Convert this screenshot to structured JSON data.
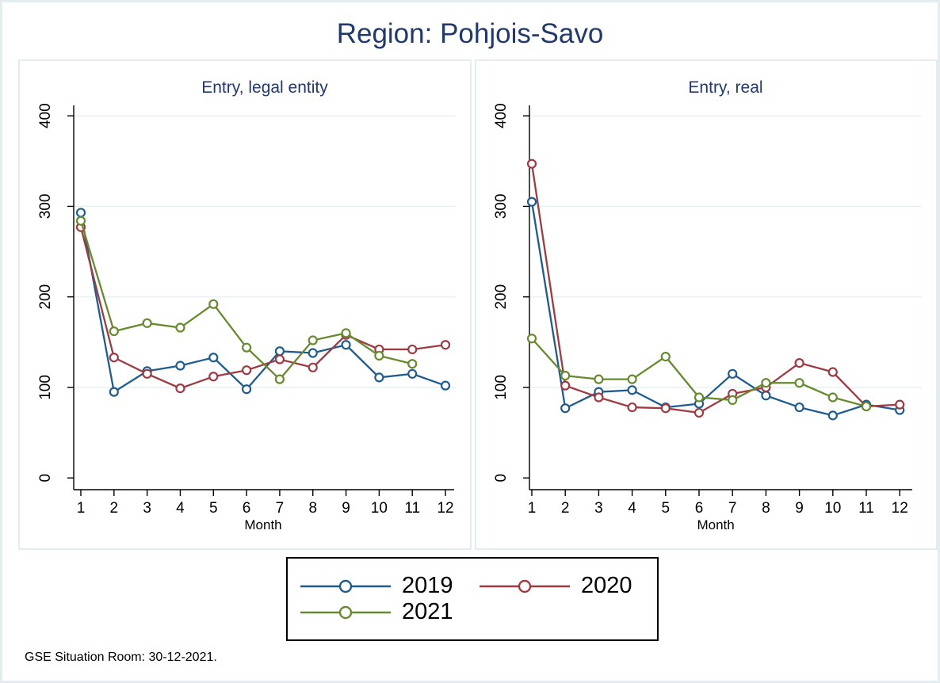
{
  "title": "Region: Pohjois-Savo",
  "footer": "GSE Situation Room: 30-12-2021.",
  "colors": {
    "series_2019": "#1f5c8d",
    "series_2020": "#9e3b42",
    "series_2021": "#668a2f",
    "title_text": "#213a6b",
    "grid": "#e9f2f3",
    "axis": "#000000",
    "panel_border": "#e3edf0",
    "background": "#ffffff"
  },
  "legend": {
    "position": "bottom-center",
    "items": [
      {
        "label": "2019",
        "color": "#1f5c8d",
        "marker": "open-circle"
      },
      {
        "label": "2020",
        "color": "#9e3b42",
        "marker": "open-circle"
      },
      {
        "label": "2021",
        "color": "#668a2f",
        "marker": "open-circle"
      }
    ]
  },
  "chart_data": [
    {
      "type": "line",
      "title": "Entry, legal entity",
      "xlabel": "Month",
      "x": [
        1,
        2,
        3,
        4,
        5,
        6,
        7,
        8,
        9,
        10,
        11,
        12
      ],
      "ylim": [
        0,
        400
      ],
      "yticks": [
        0,
        100,
        200,
        300,
        400
      ],
      "grid": true,
      "marker": "open-circle",
      "series": [
        {
          "name": "2019",
          "color": "#1f5c8d",
          "values": [
            293,
            95,
            118,
            124,
            133,
            98,
            140,
            138,
            147,
            111,
            115,
            102
          ]
        },
        {
          "name": "2020",
          "color": "#9e3b42",
          "values": [
            277,
            133,
            115,
            99,
            112,
            119,
            131,
            122,
            158,
            142,
            142,
            147
          ]
        },
        {
          "name": "2021",
          "color": "#668a2f",
          "values": [
            284,
            162,
            171,
            166,
            192,
            144,
            109,
            152,
            160,
            135,
            126,
            null
          ]
        }
      ]
    },
    {
      "type": "line",
      "title": "Entry, real",
      "xlabel": "Month",
      "x": [
        1,
        2,
        3,
        4,
        5,
        6,
        7,
        8,
        9,
        10,
        11,
        12
      ],
      "ylim": [
        0,
        400
      ],
      "yticks": [
        0,
        100,
        200,
        300,
        400
      ],
      "grid": true,
      "marker": "open-circle",
      "series": [
        {
          "name": "2019",
          "color": "#1f5c8d",
          "values": [
            305,
            77,
            95,
            97,
            78,
            82,
            115,
            91,
            78,
            69,
            81,
            75
          ]
        },
        {
          "name": "2020",
          "color": "#9e3b42",
          "values": [
            347,
            102,
            89,
            78,
            77,
            72,
            93,
            100,
            127,
            117,
            79,
            81
          ]
        },
        {
          "name": "2021",
          "color": "#668a2f",
          "values": [
            154,
            113,
            109,
            109,
            134,
            89,
            86,
            105,
            105,
            89,
            79,
            null
          ]
        }
      ]
    }
  ]
}
